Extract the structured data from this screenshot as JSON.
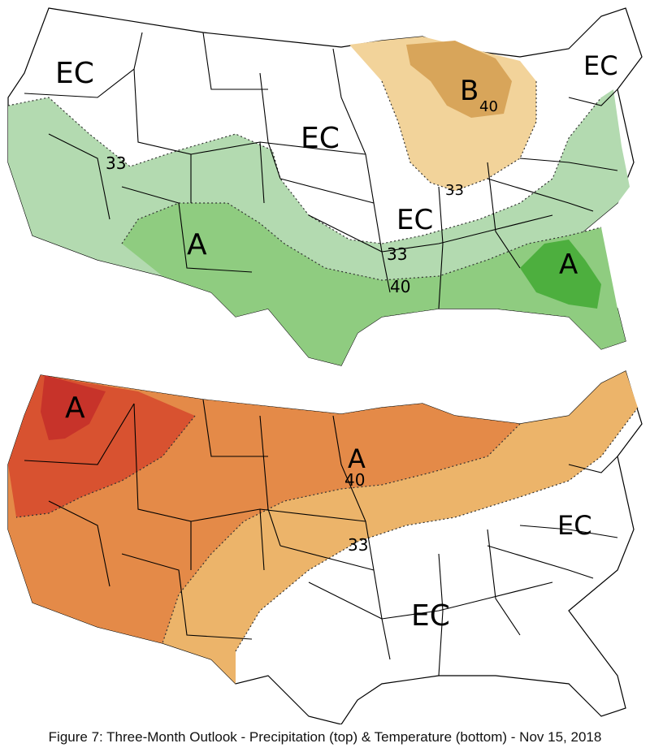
{
  "caption": "Figure 7: Three-Month Outlook - Precipitation (top) & Temperature (bottom) - Nov 15, 2018",
  "colors": {
    "wet_33": "#b3dab0",
    "wet_40": "#8fcc80",
    "wet_50": "#4daf3e",
    "dry_33": "#f2d39a",
    "dry_40": "#d8a55a",
    "warm_33": "#ecb46a",
    "warm_40": "#e48a48",
    "warm_50": "#d85230",
    "warm_60": "#c7332a"
  },
  "precipitation": {
    "labels": {
      "ec_northwest": "EC",
      "ec_plains": "EC",
      "ec_midsouth": "EC",
      "ec_northeast": "EC",
      "a_southwest": "A",
      "a_southeast": "A",
      "b_greatlakes": "B",
      "c33_west": "33",
      "c33_south": "33",
      "c33_midwest": "33",
      "c40_south": "40",
      "c40_greatlakes": "40"
    }
  },
  "temperature": {
    "labels": {
      "a_northwest": "A",
      "a_northplains": "A",
      "c40": "40",
      "c33": "33",
      "ec_east": "EC",
      "ec_south": "EC"
    }
  }
}
